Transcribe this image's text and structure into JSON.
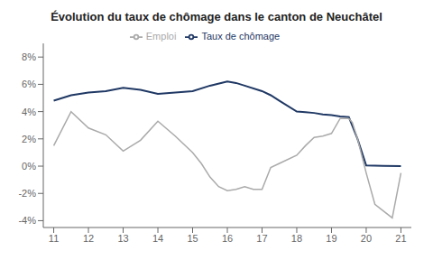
{
  "chart_data": {
    "type": "line",
    "title": "Évolution du taux de chômage dans le canton de Neuchâtel",
    "series": [
      {
        "name": "Taux de chômage",
        "color": "#1F3864",
        "x": [
          11,
          11.5,
          12,
          12.5,
          13,
          13.5,
          14,
          14.5,
          15,
          15.5,
          16,
          16.25,
          16.5,
          17,
          17.25,
          17.5,
          18,
          18.25,
          18.5,
          18.75,
          19,
          19.25,
          19.5,
          19.75,
          20,
          20.5,
          21
        ],
        "values": [
          4.8,
          5.2,
          5.4,
          5.5,
          5.75,
          5.6,
          5.3,
          5.4,
          5.5,
          5.9,
          6.2,
          6.1,
          5.9,
          5.5,
          5.2,
          4.8,
          4.0,
          3.95,
          3.9,
          3.8,
          3.75,
          3.65,
          3.6,
          2.0,
          0.05,
          0.02,
          0.0
        ]
      },
      {
        "name": "Emploi",
        "color": "#AAAAAA",
        "x": [
          11,
          11.5,
          12,
          12.5,
          13,
          13.5,
          14,
          14.5,
          15,
          15.25,
          15.5,
          15.75,
          16,
          16.25,
          16.5,
          16.75,
          17,
          17.25,
          17.5,
          18,
          18.25,
          18.5,
          18.75,
          19,
          19.25,
          19.5,
          19.6,
          19.75,
          20,
          20.25,
          20.5,
          20.75,
          21
        ],
        "values": [
          1.5,
          4.0,
          2.8,
          2.3,
          1.1,
          1.9,
          3.3,
          2.2,
          1.0,
          0.2,
          -0.8,
          -1.5,
          -1.8,
          -1.7,
          -1.5,
          -1.7,
          -1.7,
          -0.1,
          0.2,
          0.8,
          1.5,
          2.1,
          2.2,
          2.4,
          3.5,
          3.5,
          3.2,
          2.0,
          -0.5,
          -2.8,
          -3.3,
          -3.8,
          -0.5
        ]
      }
    ],
    "xlim": [
      10.7,
      21.3
    ],
    "xticks": [
      11,
      12,
      13,
      14,
      15,
      16,
      17,
      18,
      19,
      20,
      21
    ],
    "ylim": [
      -4.5,
      9.0
    ],
    "yticks": [
      {
        "value": -4,
        "label": "-4%"
      },
      {
        "value": -2,
        "label": "-2%"
      },
      {
        "value": 0,
        "label": "0%"
      },
      {
        "value": 2,
        "label": "2%"
      },
      {
        "value": 4,
        "label": "4%"
      },
      {
        "value": 6,
        "label": "6%"
      },
      {
        "value": 8,
        "label": "8%"
      }
    ],
    "grid": false,
    "legend": "top"
  }
}
